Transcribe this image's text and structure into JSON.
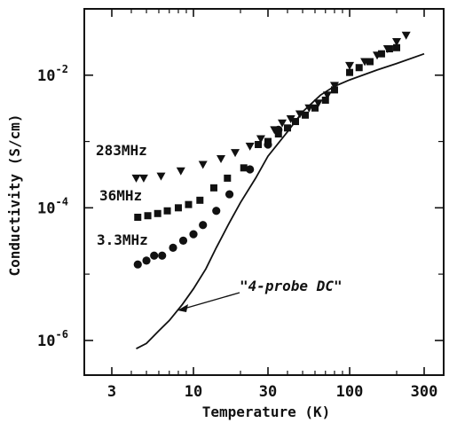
{
  "chart_data": {
    "type": "scatter",
    "xlabel": "Temperature (K)",
    "ylabel": "Conductivity (S/cm)",
    "x_scale": "log",
    "y_scale": "log",
    "xlim": [
      2.0,
      400
    ],
    "ylim": [
      3e-07,
      0.1
    ],
    "x_ticks": [
      {
        "value": 3,
        "label": "3"
      },
      {
        "value": 10,
        "label": "10"
      },
      {
        "value": 30,
        "label": "30"
      },
      {
        "value": 100,
        "label": "100"
      },
      {
        "value": 300,
        "label": "300"
      }
    ],
    "y_ticks": [
      {
        "value": 1e-06,
        "base": "10",
        "exp": "-6"
      },
      {
        "value": 0.0001,
        "base": "10",
        "exp": "-4"
      },
      {
        "value": 0.01,
        "base": "10",
        "exp": "-2"
      }
    ],
    "series": [
      {
        "name": "283MHz",
        "marker": "triangle-down",
        "points": [
          [
            4.3,
            0.00028
          ],
          [
            4.8,
            0.00028
          ],
          [
            6.2,
            0.0003
          ],
          [
            8.3,
            0.00036
          ],
          [
            11.5,
            0.00045
          ],
          [
            15,
            0.00055
          ],
          [
            18.5,
            0.00068
          ],
          [
            23,
            0.00085
          ],
          [
            27,
            0.0011
          ],
          [
            33,
            0.0015
          ],
          [
            37,
            0.0019
          ],
          [
            42,
            0.0022
          ],
          [
            48,
            0.0026
          ],
          [
            55,
            0.0032
          ],
          [
            63,
            0.0038
          ],
          [
            72,
            0.005
          ],
          [
            80,
            0.007
          ],
          [
            100,
            0.014
          ],
          [
            125,
            0.016
          ],
          [
            150,
            0.02
          ],
          [
            175,
            0.025
          ],
          [
            200,
            0.032
          ],
          [
            230,
            0.04
          ]
        ]
      },
      {
        "name": "36MHz",
        "marker": "square",
        "points": [
          [
            4.4,
            7.2e-05
          ],
          [
            5.1,
            7.6e-05
          ],
          [
            5.9,
            8.2e-05
          ],
          [
            6.8,
            9e-05
          ],
          [
            8.0,
            0.0001
          ],
          [
            9.3,
            0.000112
          ],
          [
            11,
            0.00013
          ],
          [
            13.5,
            0.0002
          ],
          [
            16.5,
            0.00028
          ],
          [
            21,
            0.0004
          ],
          [
            26,
            0.0009
          ],
          [
            30,
            0.001
          ],
          [
            35,
            0.0013
          ],
          [
            40,
            0.0016
          ],
          [
            45,
            0.002
          ],
          [
            52,
            0.0025
          ],
          [
            60,
            0.0032
          ],
          [
            70,
            0.0042
          ],
          [
            80,
            0.006
          ],
          [
            100,
            0.011
          ],
          [
            115,
            0.013
          ],
          [
            135,
            0.016
          ],
          [
            160,
            0.021
          ],
          [
            180,
            0.025
          ],
          [
            200,
            0.026
          ]
        ]
      },
      {
        "name": "3.3MHz",
        "marker": "circle",
        "points": [
          [
            4.4,
            1.4e-05
          ],
          [
            5.0,
            1.6e-05
          ],
          [
            5.6,
            1.9e-05
          ],
          [
            6.3,
            1.9e-05
          ],
          [
            7.4,
            2.5e-05
          ],
          [
            8.6,
            3.2e-05
          ],
          [
            10,
            4e-05
          ],
          [
            11.5,
            5.5e-05
          ],
          [
            14,
            9e-05
          ],
          [
            17,
            0.00016
          ],
          [
            23,
            0.00038
          ],
          [
            30,
            0.0009
          ],
          [
            35,
            0.0015
          ]
        ]
      },
      {
        "name": "\"4-probe DC\"",
        "marker": "line",
        "points": [
          [
            4.3,
            7.5e-07
          ],
          [
            5.0,
            9e-07
          ],
          [
            6.0,
            1.4e-06
          ],
          [
            7.0,
            2e-06
          ],
          [
            8.5,
            3.5e-06
          ],
          [
            10,
            6e-06
          ],
          [
            12,
            1.2e-05
          ],
          [
            14,
            2.5e-05
          ],
          [
            17,
            6e-05
          ],
          [
            20,
            0.00012
          ],
          [
            25,
            0.00028
          ],
          [
            30,
            0.0006
          ],
          [
            40,
            0.0014
          ],
          [
            50,
            0.0028
          ],
          [
            65,
            0.005
          ],
          [
            80,
            0.0068
          ],
          [
            100,
            0.0085
          ],
          [
            150,
            0.012
          ],
          [
            200,
            0.015
          ],
          [
            300,
            0.021
          ]
        ]
      }
    ],
    "labels": {
      "s283": "283MHz",
      "s36": "36MHz",
      "s33": "3.3MHz",
      "dc": "\"4-probe DC\""
    }
  }
}
